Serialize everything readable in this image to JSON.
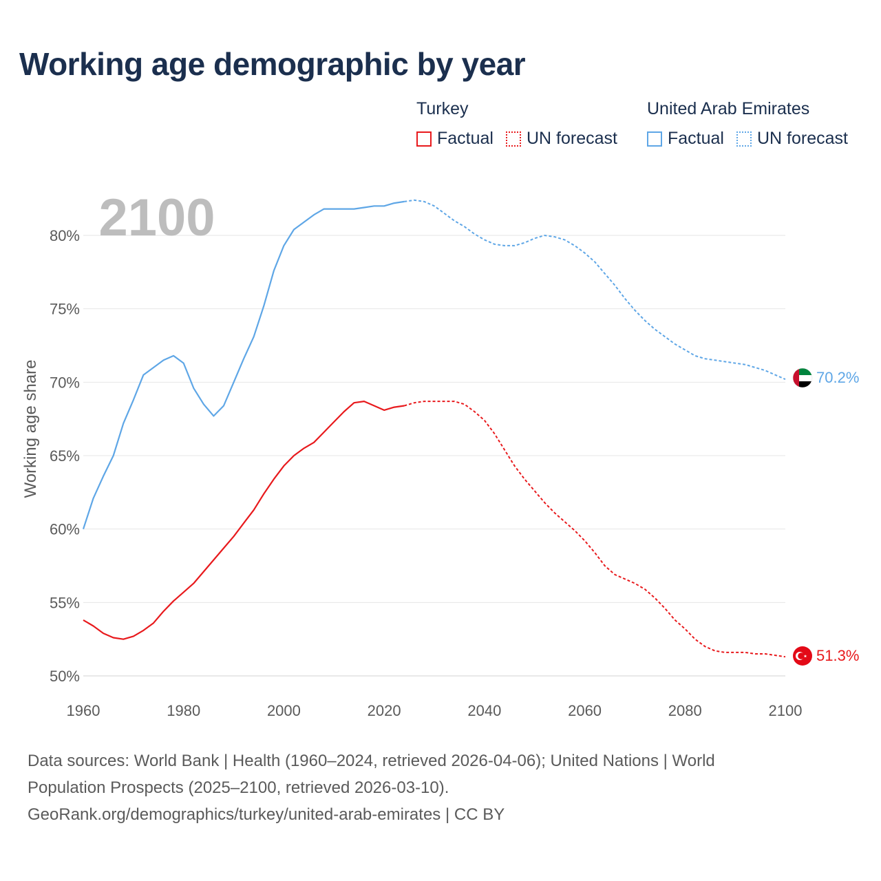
{
  "title": "Working age demographic by year",
  "legend": {
    "groups": [
      {
        "name": "Turkey",
        "color": "#e8191c",
        "factual_label": "Factual",
        "forecast_label": "UN forecast"
      },
      {
        "name": "United Arab Emirates",
        "color": "#5ea6e6",
        "factual_label": "Factual",
        "forecast_label": "UN forecast"
      }
    ]
  },
  "year_label": "2100",
  "footer": {
    "line1": "Data sources: World Bank | Health (1960–2024, retrieved 2026-04-06); United Nations | World",
    "line2": "Population Prospects (2025–2100, retrieved 2026-03-10).",
    "line3": "GeoRank.org/demographics/turkey/united-arab-emirates | CC BY"
  },
  "chart_data": {
    "type": "line",
    "title": "Working age demographic by year",
    "xlabel": "",
    "ylabel": "Working age share",
    "xlim": [
      1960,
      2100
    ],
    "ylim": [
      49.5,
      83.5
    ],
    "x_ticks": [
      1960,
      1980,
      2000,
      2020,
      2040,
      2060,
      2080,
      2100
    ],
    "x_tick_labels": [
      "1960",
      "1980",
      "2000",
      "2020",
      "2040",
      "2060",
      "2080",
      "2100"
    ],
    "y_ticks": [
      50,
      55,
      60,
      65,
      70,
      75,
      80
    ],
    "y_tick_labels": [
      "50%",
      "55%",
      "60%",
      "65%",
      "70%",
      "75%",
      "80%"
    ],
    "grid": true,
    "series": [
      {
        "name": "Turkey",
        "color": "#e8191c",
        "end_label": "51.3%",
        "factual": {
          "x": [
            1960,
            1962,
            1964,
            1966,
            1968,
            1970,
            1972,
            1974,
            1976,
            1978,
            1980,
            1982,
            1984,
            1986,
            1988,
            1990,
            1992,
            1994,
            1996,
            1998,
            2000,
            2002,
            2004,
            2006,
            2008,
            2010,
            2012,
            2014,
            2016,
            2018,
            2020,
            2022,
            2024
          ],
          "y": [
            53.8,
            53.4,
            52.9,
            52.6,
            52.5,
            52.7,
            53.1,
            53.6,
            54.4,
            55.1,
            55.7,
            56.3,
            57.1,
            57.9,
            58.7,
            59.5,
            60.4,
            61.3,
            62.4,
            63.4,
            64.3,
            65.0,
            65.5,
            65.9,
            66.6,
            67.3,
            68.0,
            68.6,
            68.7,
            68.4,
            68.1,
            68.3,
            68.4
          ]
        },
        "forecast": {
          "x": [
            2024,
            2026,
            2028,
            2030,
            2032,
            2034,
            2036,
            2038,
            2040,
            2042,
            2044,
            2046,
            2048,
            2050,
            2052,
            2054,
            2056,
            2058,
            2060,
            2062,
            2064,
            2066,
            2068,
            2070,
            2072,
            2074,
            2076,
            2078,
            2080,
            2082,
            2084,
            2086,
            2088,
            2090,
            2092,
            2094,
            2096,
            2098,
            2100
          ],
          "y": [
            68.4,
            68.6,
            68.7,
            68.7,
            68.7,
            68.7,
            68.5,
            68.0,
            67.4,
            66.5,
            65.4,
            64.3,
            63.4,
            62.6,
            61.8,
            61.1,
            60.5,
            59.9,
            59.2,
            58.4,
            57.5,
            56.9,
            56.6,
            56.3,
            55.9,
            55.3,
            54.6,
            53.8,
            53.2,
            52.5,
            52.0,
            51.7,
            51.6,
            51.6,
            51.6,
            51.5,
            51.5,
            51.4,
            51.3
          ]
        }
      },
      {
        "name": "United Arab Emirates",
        "color": "#5ea6e6",
        "end_label": "70.2%",
        "factual": {
          "x": [
            1960,
            1962,
            1964,
            1966,
            1968,
            1970,
            1972,
            1974,
            1976,
            1978,
            1980,
            1982,
            1984,
            1986,
            1988,
            1990,
            1992,
            1994,
            1996,
            1998,
            2000,
            2002,
            2004,
            2006,
            2008,
            2010,
            2012,
            2014,
            2016,
            2018,
            2020,
            2022,
            2024
          ],
          "y": [
            60.0,
            62.1,
            63.6,
            65.0,
            67.2,
            68.8,
            70.5,
            71.0,
            71.5,
            71.8,
            71.3,
            69.6,
            68.5,
            67.7,
            68.4,
            70.0,
            71.6,
            73.1,
            75.2,
            77.6,
            79.3,
            80.4,
            80.9,
            81.4,
            81.8,
            81.8,
            81.8,
            81.8,
            81.9,
            82.0,
            82.0,
            82.2,
            82.3
          ]
        },
        "forecast": {
          "x": [
            2024,
            2026,
            2028,
            2030,
            2032,
            2034,
            2036,
            2038,
            2040,
            2042,
            2044,
            2046,
            2048,
            2050,
            2052,
            2054,
            2056,
            2058,
            2060,
            2062,
            2064,
            2066,
            2068,
            2070,
            2072,
            2074,
            2076,
            2078,
            2080,
            2082,
            2084,
            2086,
            2088,
            2090,
            2092,
            2094,
            2096,
            2098,
            2100
          ],
          "y": [
            82.3,
            82.4,
            82.3,
            82.0,
            81.5,
            81.0,
            80.6,
            80.1,
            79.7,
            79.4,
            79.3,
            79.3,
            79.5,
            79.8,
            80.0,
            79.9,
            79.7,
            79.3,
            78.8,
            78.2,
            77.4,
            76.6,
            75.7,
            74.9,
            74.2,
            73.6,
            73.1,
            72.6,
            72.2,
            71.8,
            71.6,
            71.5,
            71.4,
            71.3,
            71.2,
            71.0,
            70.8,
            70.5,
            70.2
          ]
        }
      }
    ]
  }
}
